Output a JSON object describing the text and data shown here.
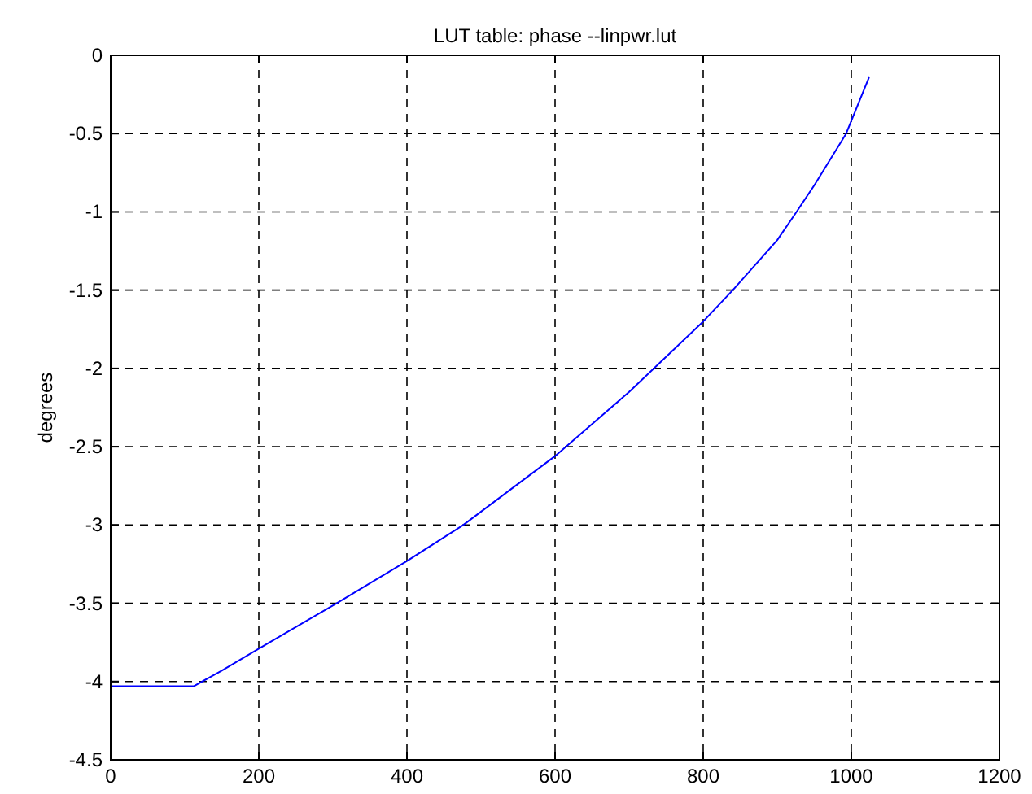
{
  "chart_data": {
    "type": "line",
    "title": "LUT table: phase --linpwr.lut",
    "ylabel": "degrees",
    "x": [
      0,
      112,
      150,
      200,
      305,
      400,
      476,
      600,
      700,
      800,
      840,
      900,
      926,
      950,
      993,
      1024
    ],
    "series": [
      {
        "color": "#0000ff",
        "values": [
          -4.03,
          -4.03,
          -3.93,
          -3.79,
          -3.5,
          -3.23,
          -3.0,
          -2.56,
          -2.15,
          -1.7,
          -1.5,
          -1.18,
          -1.0,
          -0.83,
          -0.5,
          -0.14
        ]
      }
    ],
    "xlim": [
      0,
      1200
    ],
    "xticks": [
      0,
      200,
      400,
      600,
      800,
      1000,
      1200
    ],
    "ylim": [
      -4.5,
      0
    ],
    "yticks": [
      -4.5,
      -4,
      -3.5,
      -3,
      -2.5,
      -2,
      -1.5,
      -1,
      -0.5,
      0
    ],
    "grid": true,
    "line_style": "solid"
  }
}
